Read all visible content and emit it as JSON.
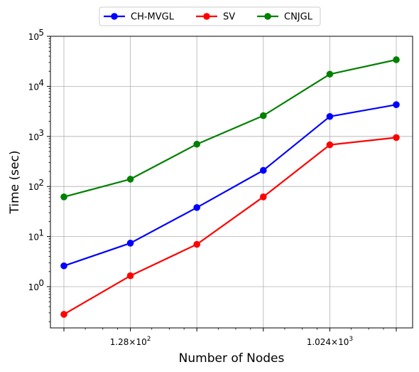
{
  "chart_data": {
    "type": "line",
    "xlabel": "Number of Nodes",
    "ylabel": "Time (sec)",
    "x_scale": "log2",
    "y_scale": "log10",
    "x": [
      64,
      128,
      256,
      512,
      1024,
      2048
    ],
    "x_tick_labels": [
      {
        "value": 128,
        "base": "1.28",
        "exp": "2"
      },
      {
        "value": 1024,
        "base": "1.024",
        "exp": "3"
      }
    ],
    "y_tick_labels": [
      {
        "value": 1,
        "exp": "0"
      },
      {
        "value": 10,
        "exp": "1"
      },
      {
        "value": 100,
        "exp": "2"
      },
      {
        "value": 1000,
        "exp": "3"
      },
      {
        "value": 10000,
        "exp": "4"
      },
      {
        "value": 100000,
        "exp": "5"
      }
    ],
    "tick_base": "10",
    "tick_times": "×",
    "ylim": [
      0.15,
      100000
    ],
    "grid": true,
    "legend_position": "top-center, outside plot",
    "series": [
      {
        "name": "CH-MVGL",
        "color": "#0000ff",
        "values": [
          2.6,
          7.4,
          38,
          210,
          2500,
          4300
        ]
      },
      {
        "name": "SV",
        "color": "#ff0000",
        "values": [
          0.28,
          1.65,
          7.0,
          62,
          680,
          950
        ]
      },
      {
        "name": "CNJGL",
        "color": "#008000",
        "values": [
          62,
          140,
          700,
          2600,
          17500,
          34000
        ]
      }
    ]
  }
}
